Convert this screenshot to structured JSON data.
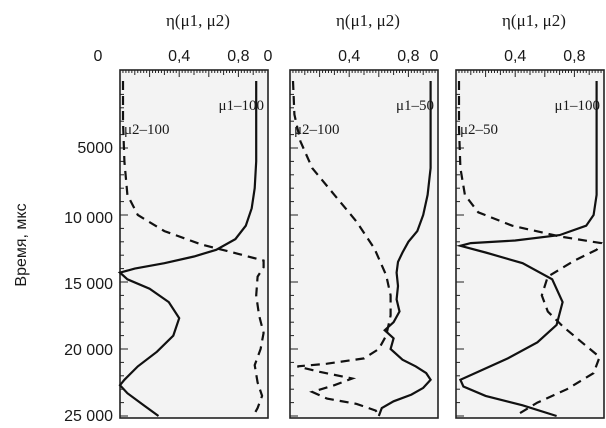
{
  "figure": {
    "ylabel": "Время, мкс",
    "y_tick_labels": [
      "5000",
      "10 000",
      "15 000",
      "20 000",
      "25 000"
    ]
  },
  "chart_data": [
    {
      "type": "line",
      "title": "η(μ1, μ2)",
      "xlabel": "η(μ1, μ2)",
      "ylabel": "Время, мкс",
      "x_tick_labels": [
        "0",
        "0,4",
        "0,8"
      ],
      "xlim": [
        0,
        1
      ],
      "ylim": [
        25000,
        0
      ],
      "y_inverted": true,
      "series": [
        {
          "name": "μ1–100",
          "style": "solid",
          "points": [
            [
              0.92,
              0
            ],
            [
              0.92,
              3000
            ],
            [
              0.92,
              6000
            ],
            [
              0.91,
              8000
            ],
            [
              0.89,
              9500
            ],
            [
              0.85,
              10800
            ],
            [
              0.78,
              11800
            ],
            [
              0.65,
              12600
            ],
            [
              0.5,
              13100
            ],
            [
              0.3,
              13600
            ],
            [
              0.1,
              14000
            ],
            [
              0.0,
              14300
            ],
            [
              0.05,
              14800
            ],
            [
              0.2,
              15500
            ],
            [
              0.33,
              16500
            ],
            [
              0.4,
              17700
            ],
            [
              0.36,
              19000
            ],
            [
              0.25,
              20200
            ],
            [
              0.12,
              21300
            ],
            [
              0.03,
              22300
            ],
            [
              0.0,
              22700
            ],
            [
              0.05,
              23300
            ],
            [
              0.16,
              24200
            ],
            [
              0.26,
              25000
            ]
          ]
        },
        {
          "name": "μ2–100",
          "style": "dashed",
          "points": [
            [
              0.02,
              0
            ],
            [
              0.02,
              3000
            ],
            [
              0.03,
              6000
            ],
            [
              0.05,
              8500
            ],
            [
              0.12,
              10000
            ],
            [
              0.3,
              11200
            ],
            [
              0.55,
              12200
            ],
            [
              0.8,
              12900
            ],
            [
              0.97,
              13400
            ],
            [
              0.97,
              13900
            ],
            [
              0.93,
              14600
            ],
            [
              0.92,
              16000
            ],
            [
              0.94,
              17500
            ],
            [
              0.97,
              18800
            ],
            [
              0.95,
              20000
            ],
            [
              0.91,
              21200
            ],
            [
              0.93,
              22500
            ],
            [
              0.96,
              23500
            ],
            [
              0.93,
              24400
            ],
            [
              0.9,
              25000
            ]
          ]
        }
      ]
    },
    {
      "type": "line",
      "title": "η(μ1, μ2)",
      "xlabel": "η(μ1, μ2)",
      "ylabel": "Время, мкс",
      "x_tick_labels": [
        "0",
        "0,4",
        "0,8"
      ],
      "xlim": [
        0,
        1
      ],
      "ylim": [
        25000,
        0
      ],
      "y_inverted": true,
      "series": [
        {
          "name": "μ1–50",
          "style": "solid",
          "points": [
            [
              0.95,
              0
            ],
            [
              0.95,
              4000
            ],
            [
              0.95,
              6500
            ],
            [
              0.93,
              8500
            ],
            [
              0.9,
              10000
            ],
            [
              0.86,
              11200
            ],
            [
              0.8,
              12000
            ],
            [
              0.76,
              12800
            ],
            [
              0.73,
              13500
            ],
            [
              0.72,
              14300
            ],
            [
              0.73,
              15300
            ],
            [
              0.72,
              16300
            ],
            [
              0.74,
              17200
            ],
            [
              0.7,
              18000
            ],
            [
              0.64,
              18600
            ],
            [
              0.7,
              19200
            ],
            [
              0.68,
              20000
            ],
            [
              0.76,
              20800
            ],
            [
              0.85,
              21300
            ],
            [
              0.92,
              21800
            ],
            [
              0.95,
              22300
            ],
            [
              0.9,
              22900
            ],
            [
              0.82,
              23400
            ],
            [
              0.7,
              23900
            ],
            [
              0.62,
              24400
            ],
            [
              0.6,
              25000
            ]
          ]
        },
        {
          "name": "μ2–100",
          "style": "dashed",
          "points": [
            [
              0.02,
              0
            ],
            [
              0.03,
              2500
            ],
            [
              0.07,
              4500
            ],
            [
              0.15,
              6500
            ],
            [
              0.3,
              8500
            ],
            [
              0.45,
              10500
            ],
            [
              0.57,
              12500
            ],
            [
              0.65,
              14500
            ],
            [
              0.68,
              16000
            ],
            [
              0.68,
              17500
            ],
            [
              0.65,
              19000
            ],
            [
              0.6,
              20000
            ],
            [
              0.5,
              20700
            ],
            [
              0.25,
              21100
            ],
            [
              0.05,
              21300
            ],
            [
              0.2,
              21700
            ],
            [
              0.42,
              22200
            ],
            [
              0.3,
              22700
            ],
            [
              0.15,
              23200
            ],
            [
              0.25,
              23700
            ],
            [
              0.45,
              24100
            ],
            [
              0.58,
              24600
            ],
            [
              0.6,
              25000
            ]
          ]
        }
      ]
    },
    {
      "type": "line",
      "title": "η(μ1, μ2)",
      "xlabel": "η(μ1, μ2)",
      "ylabel": "Время, мкс",
      "x_tick_labels": [
        "0",
        "0,4",
        "0,8"
      ],
      "xlim": [
        0,
        1
      ],
      "ylim": [
        25000,
        0
      ],
      "y_inverted": true,
      "series": [
        {
          "name": "μ1–100",
          "style": "solid",
          "points": [
            [
              0.95,
              0
            ],
            [
              0.95,
              5000
            ],
            [
              0.95,
              8500
            ],
            [
              0.93,
              10000
            ],
            [
              0.88,
              10800
            ],
            [
              0.7,
              11500
            ],
            [
              0.4,
              11900
            ],
            [
              0.1,
              12100
            ],
            [
              0.03,
              12300
            ],
            [
              0.2,
              12800
            ],
            [
              0.45,
              13600
            ],
            [
              0.65,
              14800
            ],
            [
              0.72,
              16500
            ],
            [
              0.68,
              18200
            ],
            [
              0.55,
              19500
            ],
            [
              0.35,
              20700
            ],
            [
              0.15,
              21700
            ],
            [
              0.03,
              22300
            ],
            [
              0.05,
              22800
            ],
            [
              0.2,
              23500
            ],
            [
              0.45,
              24200
            ],
            [
              0.68,
              25000
            ]
          ]
        },
        {
          "name": "μ2–50",
          "style": "dashed",
          "points": [
            [
              0.02,
              0
            ],
            [
              0.02,
              3500
            ],
            [
              0.03,
              6500
            ],
            [
              0.06,
              8500
            ],
            [
              0.15,
              9800
            ],
            [
              0.38,
              10800
            ],
            [
              0.7,
              11600
            ],
            [
              0.98,
              12100
            ],
            [
              0.95,
              12600
            ],
            [
              0.8,
              13400
            ],
            [
              0.62,
              14600
            ],
            [
              0.58,
              16000
            ],
            [
              0.62,
              17200
            ],
            [
              0.72,
              18300
            ],
            [
              0.85,
              19500
            ],
            [
              0.97,
              20600
            ],
            [
              0.93,
              21800
            ],
            [
              0.75,
              23000
            ],
            [
              0.55,
              24000
            ],
            [
              0.4,
              25000
            ]
          ]
        }
      ]
    }
  ]
}
